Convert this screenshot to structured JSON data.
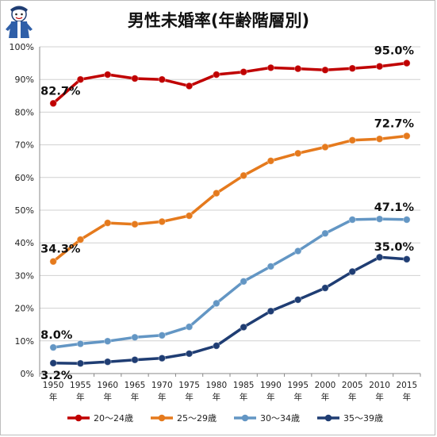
{
  "chart_data": {
    "type": "line",
    "title": "男性未婚率(年齢階層別)",
    "xlabel": "",
    "ylabel": "",
    "ylim": [
      0,
      100
    ],
    "y_ticks": [
      "0%",
      "10%",
      "20%",
      "30%",
      "40%",
      "50%",
      "60%",
      "70%",
      "80%",
      "90%",
      "100%"
    ],
    "x": [
      "1950",
      "1955",
      "1960",
      "1965",
      "1970",
      "1975",
      "1980",
      "1985",
      "1990",
      "1995",
      "2000",
      "2005",
      "2010",
      "2015"
    ],
    "x_suffix": "年",
    "grid": true,
    "legend_position": "bottom",
    "series": [
      {
        "name": "20〜24歳",
        "color": "#c00000",
        "values": [
          82.7,
          90.0,
          91.5,
          90.3,
          90.0,
          88.0,
          91.5,
          92.3,
          93.6,
          93.3,
          92.9,
          93.4,
          94.0,
          95.0
        ],
        "labels": [
          {
            "index": 0,
            "text": "82.7%",
            "pos": "above"
          },
          {
            "index": 13,
            "text": "95.0%",
            "pos": "above"
          }
        ]
      },
      {
        "name": "25〜29歳",
        "color": "#e57a1d",
        "values": [
          34.3,
          41.0,
          46.1,
          45.7,
          46.5,
          48.3,
          55.2,
          60.6,
          65.1,
          67.4,
          69.3,
          71.4,
          71.8,
          72.7
        ],
        "labels": [
          {
            "index": 0,
            "text": "34.3%",
            "pos": "above"
          },
          {
            "index": 13,
            "text": "72.7%",
            "pos": "above"
          }
        ]
      },
      {
        "name": "30〜34歳",
        "color": "#6396c4",
        "values": [
          8.0,
          9.1,
          9.9,
          11.1,
          11.7,
          14.3,
          21.5,
          28.2,
          32.8,
          37.5,
          42.9,
          47.1,
          47.3,
          47.1
        ],
        "labels": [
          {
            "index": 0,
            "text": "8.0%",
            "pos": "above"
          },
          {
            "index": 13,
            "text": "47.1%",
            "pos": "above"
          }
        ]
      },
      {
        "name": "35〜39歳",
        "color": "#1f3d73",
        "values": [
          3.2,
          3.1,
          3.6,
          4.2,
          4.7,
          6.1,
          8.5,
          14.2,
          19.1,
          22.6,
          26.2,
          31.2,
          35.6,
          35.0
        ],
        "labels": [
          {
            "index": 0,
            "text": "3.2%",
            "pos": "below"
          },
          {
            "index": 13,
            "text": "35.0%",
            "pos": "above"
          }
        ]
      }
    ]
  }
}
